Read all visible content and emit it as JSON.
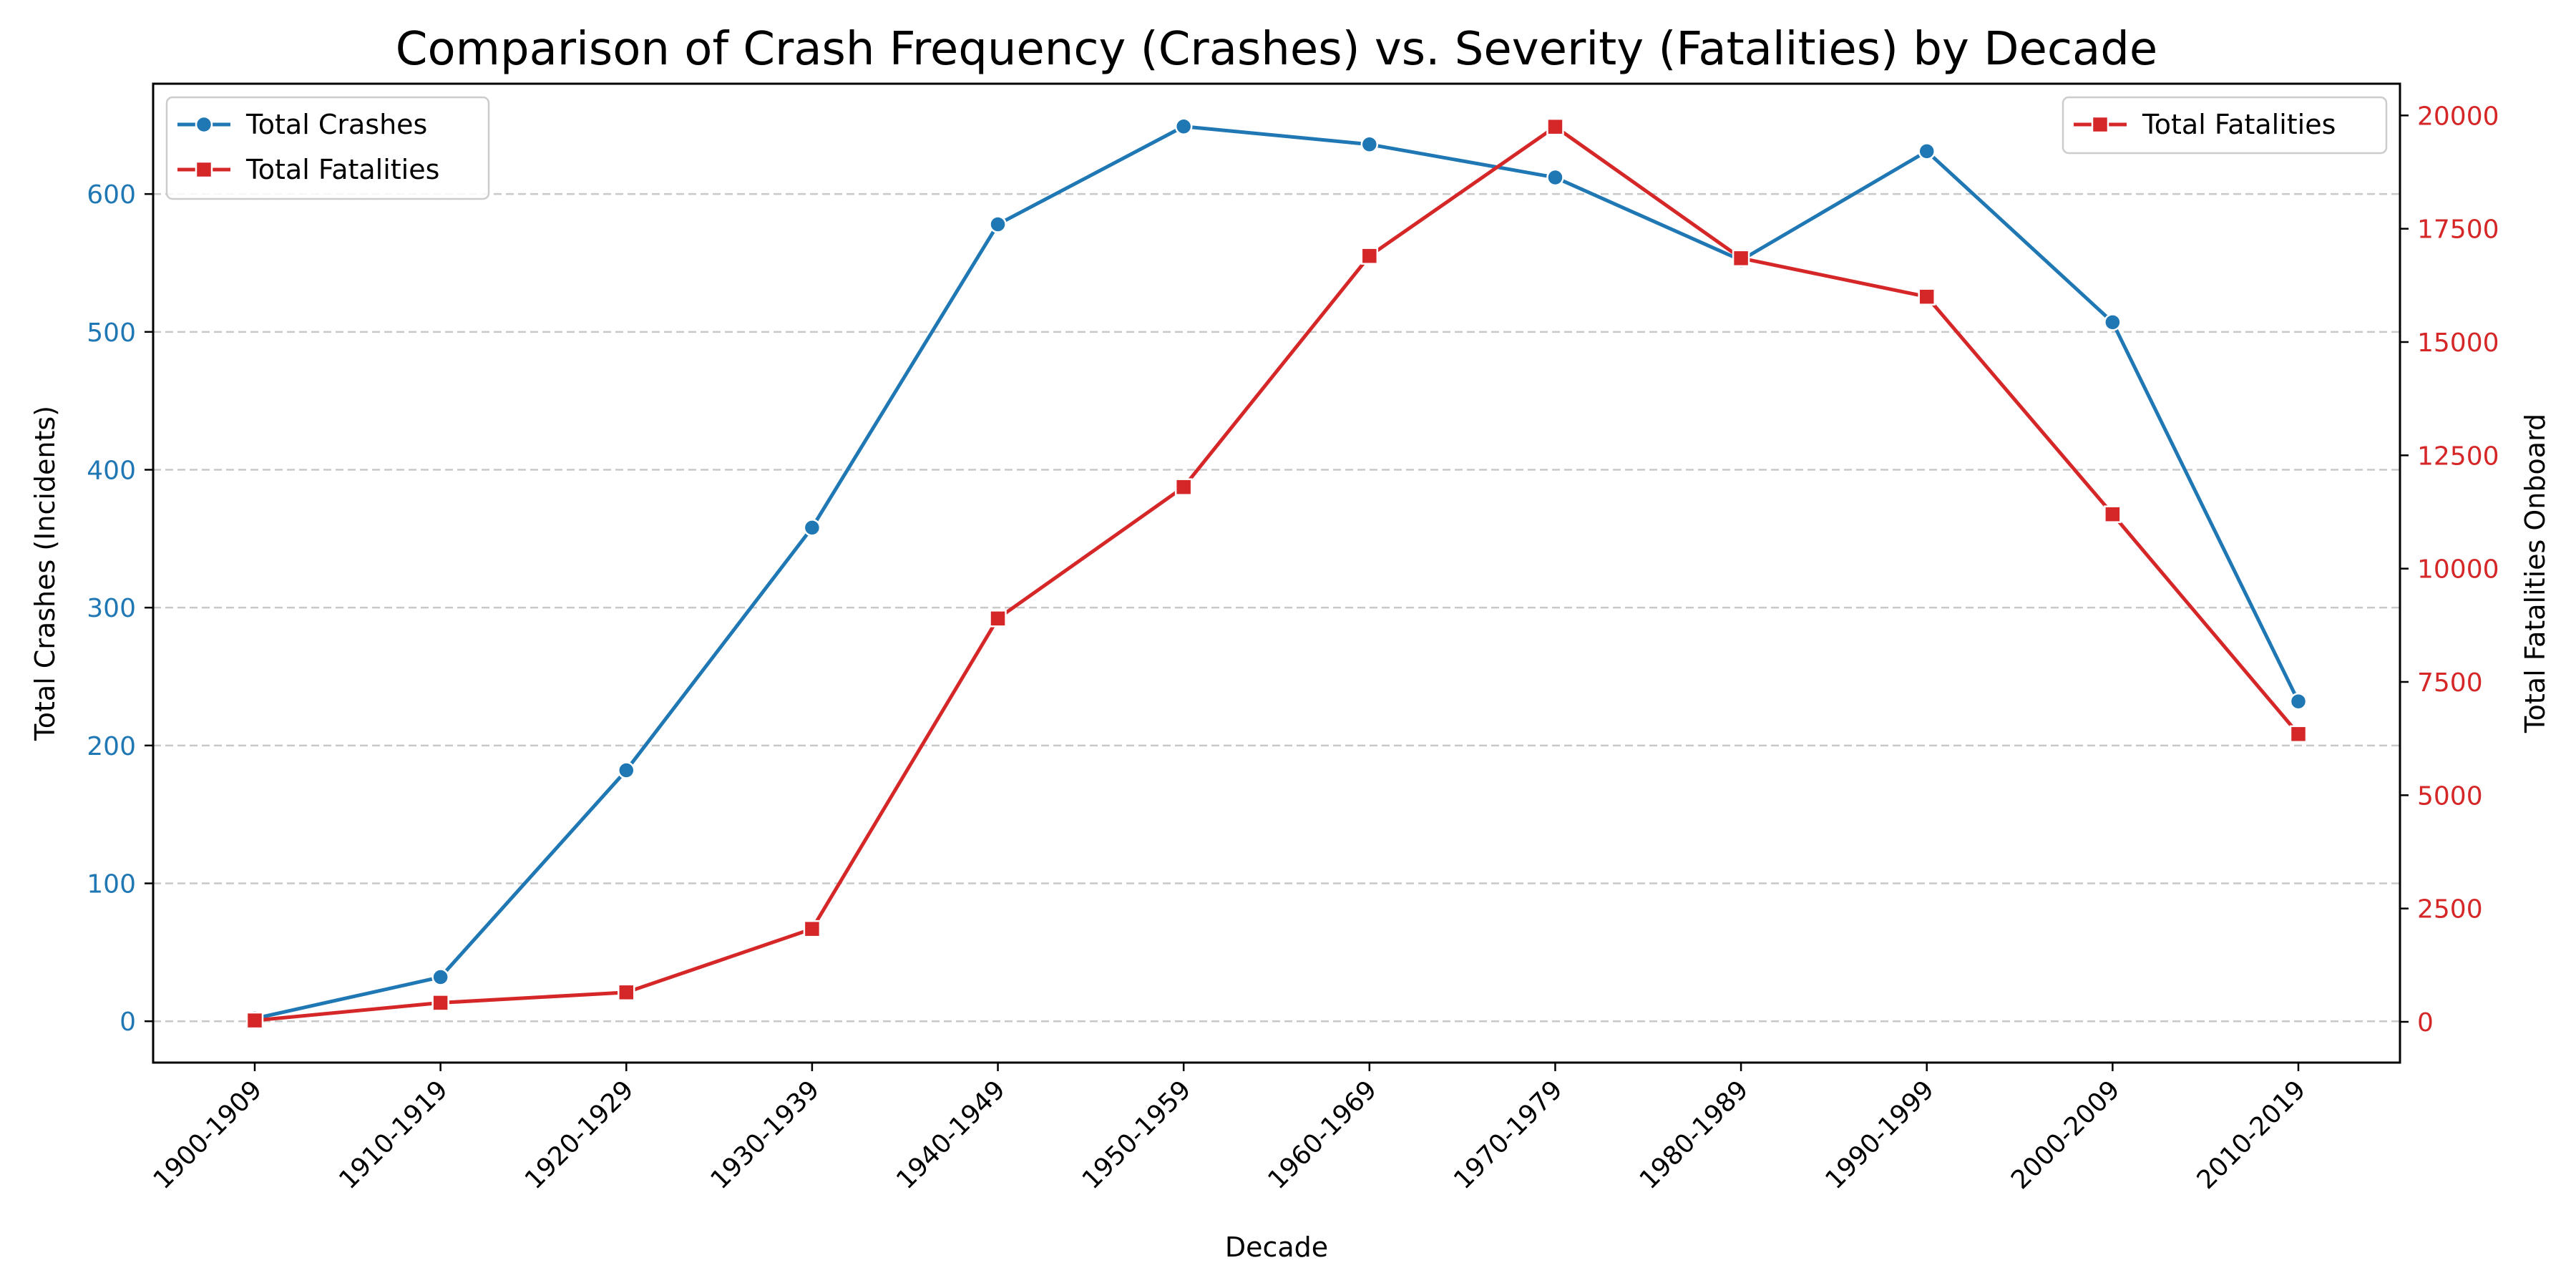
{
  "chart_data": {
    "type": "line",
    "title": "Comparison of Crash Frequency (Crashes) vs. Severity (Fatalities) by Decade",
    "xlabel": "Decade",
    "categories": [
      "1900-1909",
      "1910-1919",
      "1920-1929",
      "1930-1939",
      "1940-1949",
      "1950-1959",
      "1960-1969",
      "1970-1979",
      "1980-1989",
      "1990-1999",
      "2000-2009",
      "2010-2019"
    ],
    "left_axis": {
      "label": "Total Crashes (Incidents)",
      "ylim": [
        -30,
        680
      ],
      "ticks": [
        0,
        100,
        200,
        300,
        400,
        500,
        600
      ],
      "tick_labels": [
        "0",
        "100",
        "200",
        "300",
        "400",
        "500",
        "600"
      ],
      "color": "#1f77b4"
    },
    "right_axis": {
      "label": "Total Fatalities Onboard",
      "ylim": [
        -900,
        20700
      ],
      "ticks": [
        0,
        2500,
        5000,
        7500,
        10000,
        12500,
        15000,
        17500,
        20000
      ],
      "tick_labels": [
        "0",
        "2500",
        "5000",
        "7500",
        "10000",
        "12500",
        "15000",
        "17500",
        "20000"
      ],
      "color": "#d62728"
    },
    "series": [
      {
        "name": "Total Crashes",
        "axis": "left",
        "marker": "circle",
        "color": "#1f77b4",
        "values": [
          2,
          32,
          182,
          358,
          578,
          649,
          636,
          612,
          552,
          631,
          507,
          232
        ]
      },
      {
        "name": "Total Fatalities",
        "axis": "right",
        "marker": "square",
        "color": "#d62728",
        "values": [
          30,
          420,
          650,
          2050,
          8900,
          11800,
          16900,
          19750,
          16850,
          16000,
          11200,
          6350
        ]
      }
    ],
    "grid": "y-dashed",
    "legends": [
      "top-left",
      "top-right"
    ]
  }
}
